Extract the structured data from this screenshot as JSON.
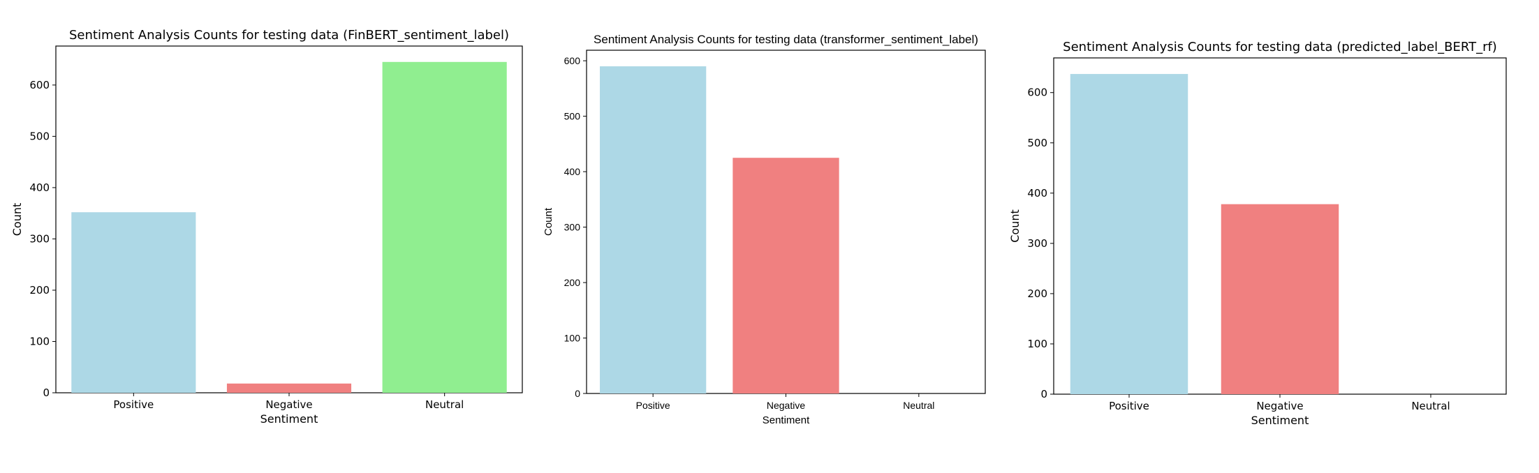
{
  "chart_data": [
    {
      "type": "bar",
      "title": "Sentiment Analysis Counts for testing data (FinBERT_sentiment_label)",
      "xlabel": "Sentiment",
      "ylabel": "Count",
      "categories": [
        "Positive",
        "Negative",
        "Neutral"
      ],
      "values": [
        352,
        18,
        645
      ],
      "colors": [
        "#add8e6",
        "#f08080",
        "#90ee90"
      ],
      "ylim": [
        0,
        676
      ],
      "yticks": [
        0,
        100,
        200,
        300,
        400,
        500,
        600
      ],
      "grid": false
    },
    {
      "type": "bar",
      "title": "Sentiment Analysis Counts for testing data (transformer_sentiment_label)",
      "xlabel": "Sentiment",
      "ylabel": "Count",
      "categories": [
        "Positive",
        "Negative",
        "Neutral"
      ],
      "values": [
        590,
        425,
        0
      ],
      "colors": [
        "#add8e6",
        "#f08080",
        "#90ee90"
      ],
      "ylim": [
        0,
        619
      ],
      "yticks": [
        0,
        100,
        200,
        300,
        400,
        500,
        600
      ],
      "grid": false
    },
    {
      "type": "bar",
      "title": "Sentiment Analysis Counts for testing data (predicted_label_BERT_rf)",
      "xlabel": "Sentiment",
      "ylabel": "Count",
      "categories": [
        "Positive",
        "Negative",
        "Neutral"
      ],
      "values": [
        637,
        378,
        0
      ],
      "colors": [
        "#add8e6",
        "#f08080",
        "#90ee90"
      ],
      "ylim": [
        0,
        669
      ],
      "yticks": [
        0,
        100,
        200,
        300,
        400,
        500,
        600
      ],
      "grid": false
    }
  ]
}
